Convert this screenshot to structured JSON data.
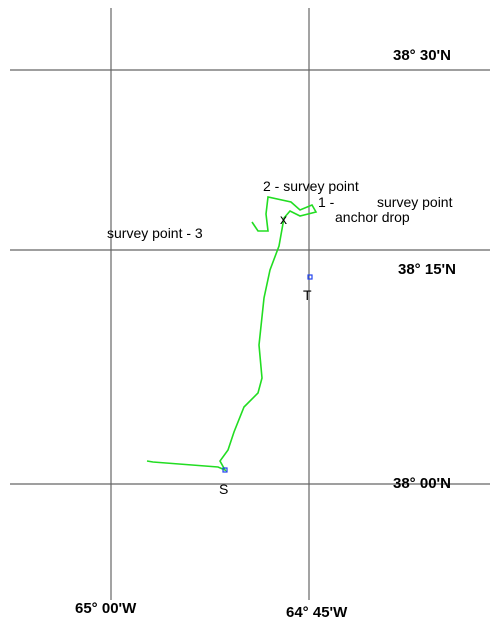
{
  "grid_labels": {
    "lat_top": "38° 30'N",
    "lat_mid": "38° 15'N",
    "lat_bottom": "38° 00'N",
    "lon_left": "65° 00'W",
    "lon_right": "64° 45'W"
  },
  "annotations": {
    "point2": "2 - survey point",
    "point1_num": "1 -",
    "point1": "survey point",
    "anchor": "anchor drop",
    "point3": "survey point - 3",
    "x_mark": "x"
  },
  "markers": {
    "target": "T",
    "start": "S"
  }
}
